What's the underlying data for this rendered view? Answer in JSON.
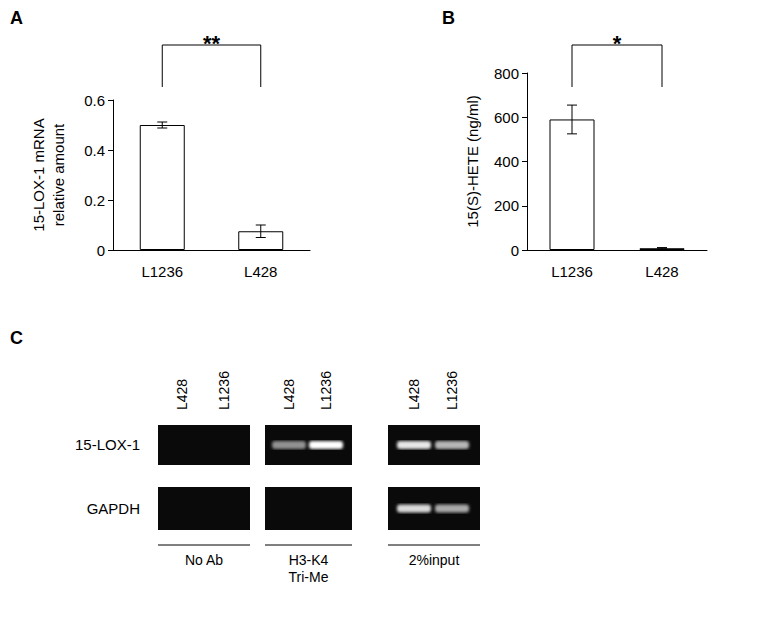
{
  "panel_labels": [
    "A",
    "B",
    "C"
  ],
  "chart_data": [
    {
      "type": "bar",
      "ylabel": "15-LOX-1 mRNA\nrelative amount",
      "categories": [
        "L1236",
        "L428"
      ],
      "values": [
        0.5,
        0.075
      ],
      "errors": [
        0.012,
        0.025
      ],
      "color": "#ffffff",
      "ylim": [
        0,
        0.6
      ],
      "yticks": [
        0,
        0.2,
        0.4,
        0.6
      ],
      "grid": false,
      "annotations": [
        {
          "text": "**",
          "from": "L1236",
          "to": "L428"
        }
      ]
    },
    {
      "type": "bar",
      "ylabel": "15(S)-HETE (ng/ml)",
      "categories": [
        "L1236",
        "L428"
      ],
      "values": [
        590,
        8
      ],
      "errors": [
        65,
        3
      ],
      "color": "#ffffff",
      "ylim": [
        0,
        800
      ],
      "yticks": [
        0,
        200,
        400,
        600,
        800
      ],
      "grid": false,
      "annotations": [
        {
          "text": "*",
          "from": "L1236",
          "to": "L428"
        }
      ]
    }
  ],
  "gel": {
    "lanes": [
      "L428",
      "L1236",
      "L428",
      "L1236",
      "L428",
      "L1236"
    ],
    "rows": [
      {
        "label": "15-LOX-1",
        "bands": [
          0,
          0,
          0.55,
          1,
          0.9,
          0.7
        ]
      },
      {
        "label": "GAPDH",
        "bands": [
          0,
          0,
          0,
          0,
          0.85,
          0.65
        ]
      }
    ],
    "groups": [
      {
        "label": "No Ab",
        "lanes": [
          0,
          1
        ]
      },
      {
        "label": "H3-K4\nTri-Me",
        "lanes": [
          2,
          3
        ]
      },
      {
        "label": "2%input",
        "lanes": [
          4,
          5
        ]
      }
    ]
  }
}
